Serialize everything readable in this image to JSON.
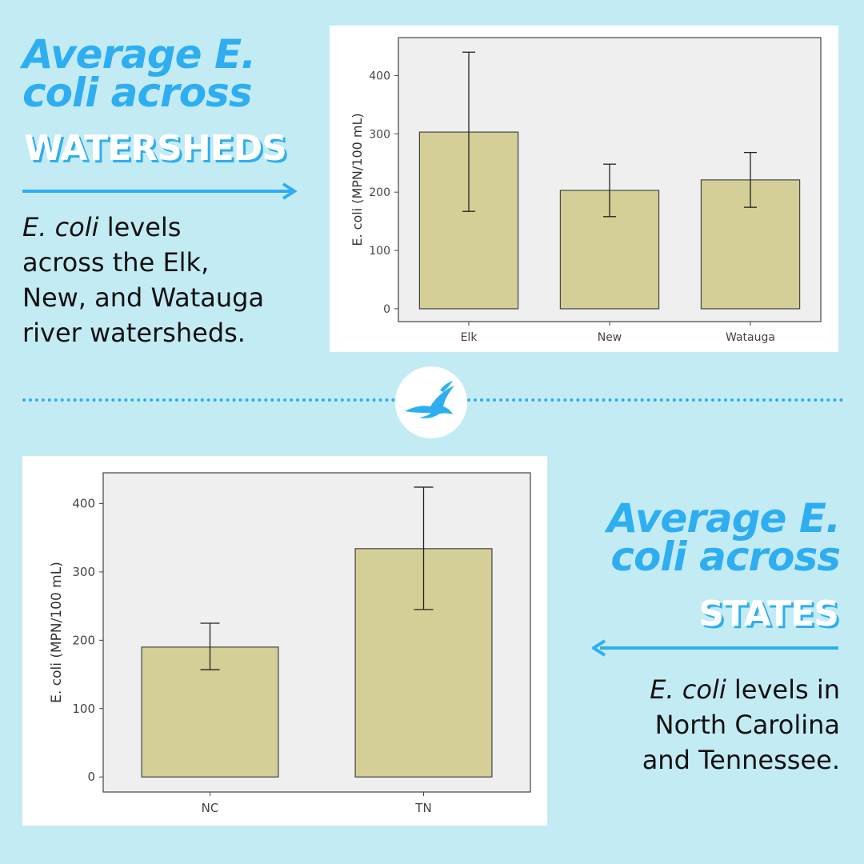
{
  "top": {
    "heading_line1": "Average E.",
    "heading_line2": "coli across",
    "caps": "WATERSHEDS",
    "desc_italic": "E. coli",
    "desc_line1_rest": " levels",
    "desc_line2": "across the Elk,",
    "desc_line3": "New, and Watauga",
    "desc_line4": "river watersheds."
  },
  "bottom": {
    "heading_line1": "Average E.",
    "heading_line2": "coli across",
    "caps": "STATES",
    "desc_italic": "E. coli",
    "desc_line1_rest": " levels in",
    "desc_line2": "North Carolina",
    "desc_line3": "and Tennessee."
  },
  "colors": {
    "background": "#c3ebf4",
    "accent": "#2eaef0",
    "bar_fill": "#d3cf96",
    "plot_bg": "#efefef"
  },
  "badge_icon": "eagle-icon",
  "chart_data": [
    {
      "type": "bar",
      "categories": [
        "Elk",
        "New",
        "Watauga"
      ],
      "values": [
        303,
        203,
        221
      ],
      "error_low": [
        167,
        158,
        174
      ],
      "error_high": [
        440,
        248,
        268
      ],
      "ylabel": "E. coli (MPN/100 mL)",
      "xlabel": "",
      "yticks": [
        0,
        100,
        200,
        300,
        400
      ],
      "ylim": [
        -22,
        465
      ],
      "grid": false
    },
    {
      "type": "bar",
      "categories": [
        "NC",
        "TN"
      ],
      "values": [
        190,
        334
      ],
      "error_low": [
        157,
        245
      ],
      "error_high": [
        225,
        424
      ],
      "ylabel": "E. coli (MPN/100 mL)",
      "xlabel": "",
      "yticks": [
        0,
        100,
        200,
        300,
        400
      ],
      "ylim": [
        -22,
        445
      ],
      "grid": false
    }
  ]
}
